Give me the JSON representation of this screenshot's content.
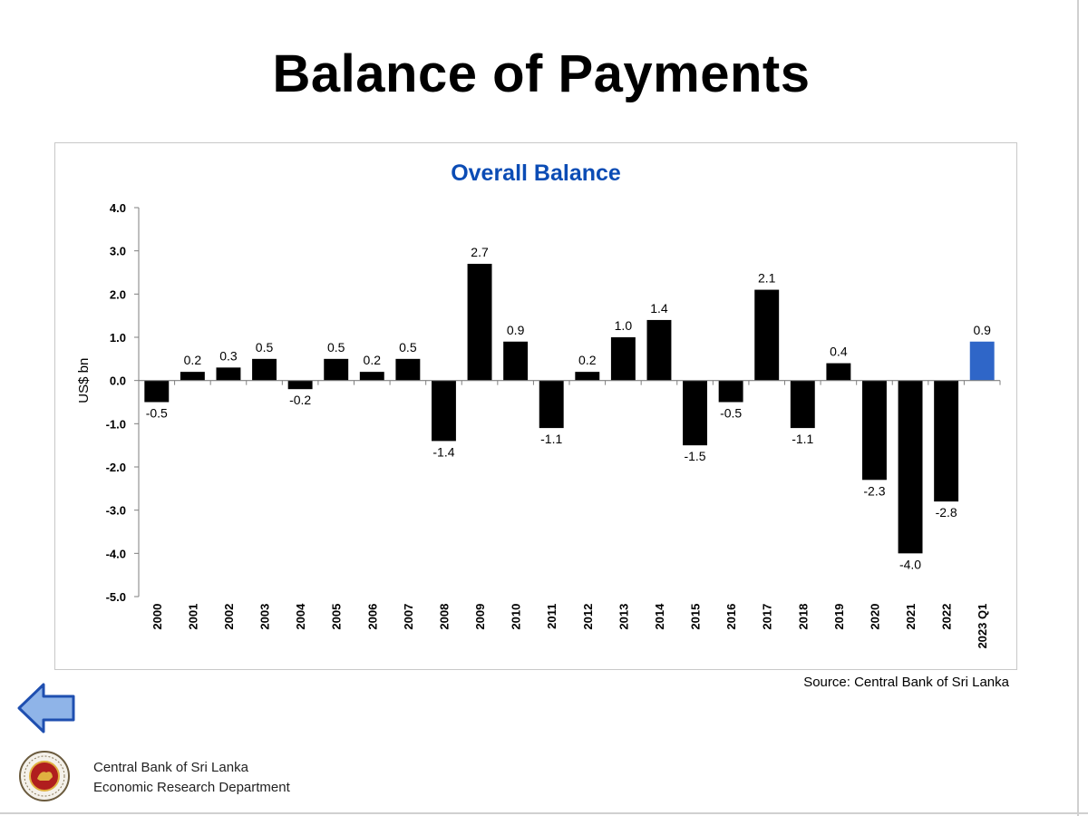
{
  "slide": {
    "title": "Balance of Payments",
    "source": "Source: Central Bank of Sri Lanka",
    "footer": {
      "line1": "Central Bank of Sri Lanka",
      "line2": "Economic Research Department"
    }
  },
  "icons": {
    "back": "left-arrow-icon",
    "logo": "central-bank-seal"
  },
  "colors": {
    "bar": "#000000",
    "highlight_bar": "#2f66c8",
    "title": "#0b4cb5",
    "arrow_fill": "#8fb4e8",
    "arrow_stroke": "#1f4fb0"
  },
  "chart_data": {
    "type": "bar",
    "title": "Overall Balance",
    "ylabel": "US$ bn",
    "xlabel": "",
    "ylim": [
      -5.0,
      4.0
    ],
    "yticks": [
      "4.0",
      "3.0",
      "2.0",
      "1.0",
      "0.0",
      "-1.0",
      "-2.0",
      "-3.0",
      "-4.0",
      "-5.0"
    ],
    "categories": [
      "2000",
      "2001",
      "2002",
      "2003",
      "2004",
      "2005",
      "2006",
      "2007",
      "2008",
      "2009",
      "2010",
      "2011",
      "2012",
      "2013",
      "2014",
      "2015",
      "2016",
      "2017",
      "2018",
      "2019",
      "2020",
      "2021",
      "2022",
      "2023 Q1"
    ],
    "values": [
      -0.5,
      0.2,
      0.3,
      0.5,
      -0.2,
      0.5,
      0.2,
      0.5,
      -1.4,
      2.7,
      0.9,
      -1.1,
      0.2,
      1.0,
      1.4,
      -1.5,
      -0.5,
      2.1,
      -1.1,
      0.4,
      -2.3,
      -4.0,
      -2.8,
      0.9
    ],
    "data_labels": [
      "-0.5",
      "0.2",
      "0.3",
      "0.5",
      "-0.2",
      "0.5",
      "0.2",
      "0.5",
      "-1.4",
      "2.7",
      "0.9",
      "-1.1",
      "0.2",
      "1.0",
      "1.4",
      "-1.5",
      "-0.5",
      "2.1",
      "-1.1",
      "0.4",
      "-2.3",
      "-4.0",
      "-2.8",
      "0.9"
    ],
    "highlight": [
      "2023 Q1"
    ],
    "grid": false,
    "legend": "none"
  }
}
